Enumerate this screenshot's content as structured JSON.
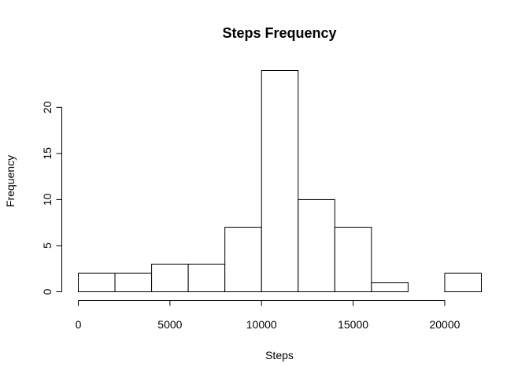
{
  "chart_data": {
    "type": "bar",
    "title": "Steps Frequency",
    "xlabel": "Steps",
    "ylabel": "Frequency",
    "bins": [
      {
        "start": 0,
        "end": 2000,
        "count": 2
      },
      {
        "start": 2000,
        "end": 4000,
        "count": 2
      },
      {
        "start": 4000,
        "end": 6000,
        "count": 3
      },
      {
        "start": 6000,
        "end": 8000,
        "count": 3
      },
      {
        "start": 8000,
        "end": 10000,
        "count": 7
      },
      {
        "start": 10000,
        "end": 12000,
        "count": 24
      },
      {
        "start": 12000,
        "end": 14000,
        "count": 10
      },
      {
        "start": 14000,
        "end": 16000,
        "count": 7
      },
      {
        "start": 16000,
        "end": 18000,
        "count": 1
      },
      {
        "start": 18000,
        "end": 20000,
        "count": 0
      },
      {
        "start": 20000,
        "end": 22000,
        "count": 2
      }
    ],
    "xticks": [
      0,
      5000,
      10000,
      15000,
      20000
    ],
    "yticks": [
      0,
      5,
      10,
      15,
      20
    ],
    "xlim": [
      0,
      22000
    ],
    "ylim": [
      0,
      24
    ],
    "grid": false,
    "bar_fill": "#ffffff",
    "bar_stroke": "#000000"
  }
}
